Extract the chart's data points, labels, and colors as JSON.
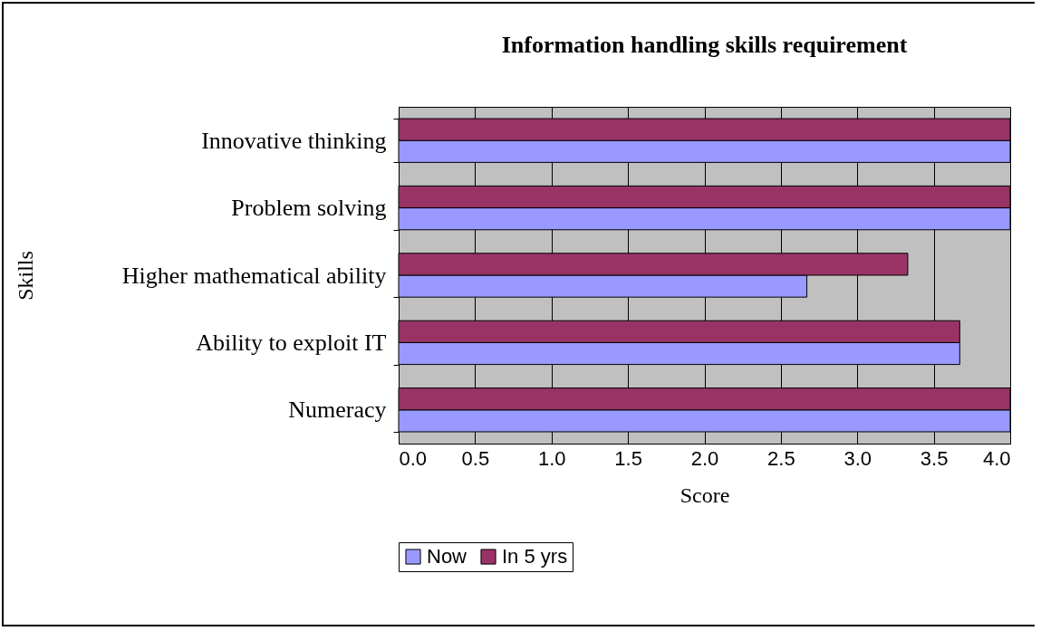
{
  "chart_data": {
    "type": "bar",
    "orientation": "horizontal",
    "title": "Information handling skills requirement",
    "xlabel": "Score",
    "ylabel": "Skills",
    "categories": [
      "Innovative thinking",
      "Problem solving",
      "Higher mathematical ability",
      "Ability to exploit IT",
      "Numeracy"
    ],
    "series": [
      {
        "name": "Now",
        "color": "#9999ff",
        "values": [
          4,
          4,
          2.67,
          3.67,
          4
        ]
      },
      {
        "name": "In 5 yrs",
        "color": "#993366",
        "values": [
          4,
          4,
          3.33,
          3.67,
          4
        ]
      }
    ],
    "xlim": [
      0,
      4
    ],
    "xticks": [
      {
        "value": 0,
        "label": "0.0"
      },
      {
        "value": 0.5,
        "label": "0.5"
      },
      {
        "value": 1,
        "label": "1.0"
      },
      {
        "value": 1.5,
        "label": "1.5"
      },
      {
        "value": 2,
        "label": "2.0"
      },
      {
        "value": 2.5,
        "label": "2.5"
      },
      {
        "value": 3,
        "label": "3.0"
      },
      {
        "value": 3.5,
        "label": "3.5"
      },
      {
        "value": 4,
        "label": "4.0"
      }
    ],
    "grid": "x",
    "legend": "bottom"
  }
}
